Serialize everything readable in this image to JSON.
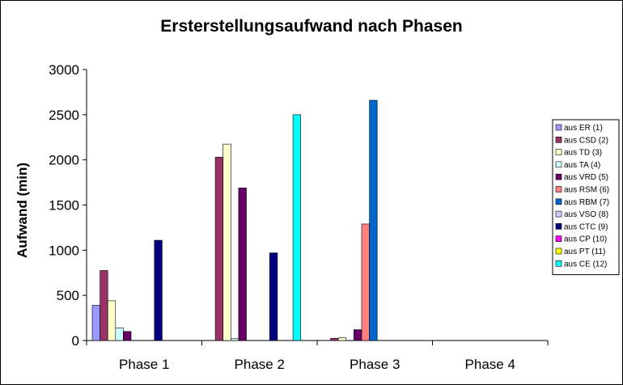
{
  "chart_data": {
    "type": "bar",
    "title": "Ersterstellungsaufwand nach Phasen",
    "ylabel": "Aufwand (min)",
    "xlabel": "",
    "ylim": [
      0,
      3000
    ],
    "yticks": [
      0,
      500,
      1000,
      1500,
      2000,
      2500,
      3000
    ],
    "grid": false,
    "legend_position": "right",
    "categories": [
      "Phase 1",
      "Phase 2",
      "Phase 3",
      "Phase 4"
    ],
    "series": [
      {
        "name": "aus ER (1)",
        "color": "#9999ff",
        "values": [
          390,
          0,
          0,
          0
        ]
      },
      {
        "name": "aus CSD (2)",
        "color": "#993366",
        "values": [
          775,
          2030,
          25,
          0
        ]
      },
      {
        "name": "aus TD (3)",
        "color": "#ffffcc",
        "values": [
          440,
          2175,
          30,
          0
        ]
      },
      {
        "name": "aus TA (4)",
        "color": "#ccffff",
        "values": [
          140,
          20,
          0,
          0
        ]
      },
      {
        "name": "aus VRD (5)",
        "color": "#660066",
        "values": [
          100,
          1690,
          120,
          0
        ]
      },
      {
        "name": "aus RSM (6)",
        "color": "#ff8080",
        "values": [
          0,
          0,
          1290,
          0
        ]
      },
      {
        "name": "aus RBM (7)",
        "color": "#0066cc",
        "values": [
          0,
          0,
          2660,
          0
        ]
      },
      {
        "name": "aus VSO (8)",
        "color": "#ccccff",
        "values": [
          0,
          0,
          0,
          0
        ]
      },
      {
        "name": "aus CTC (9)",
        "color": "#000080",
        "values": [
          1110,
          970,
          0,
          0
        ]
      },
      {
        "name": "aus CP (10)",
        "color": "#ff00ff",
        "values": [
          0,
          0,
          0,
          0
        ]
      },
      {
        "name": "aus PT (11)",
        "color": "#ffff00",
        "values": [
          0,
          0,
          0,
          0
        ]
      },
      {
        "name": "aus CE (12)",
        "color": "#00ffff",
        "values": [
          0,
          2500,
          0,
          0
        ]
      }
    ]
  }
}
